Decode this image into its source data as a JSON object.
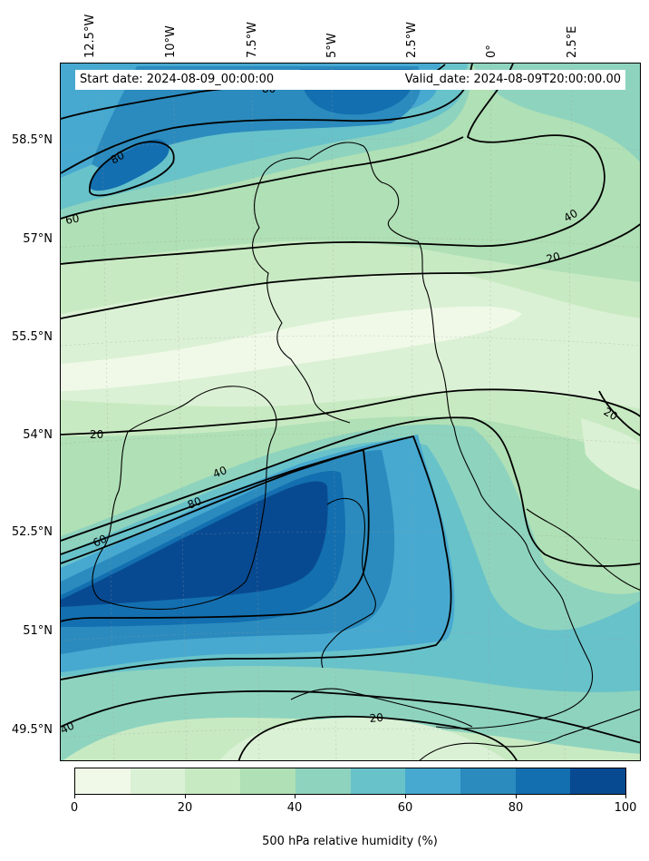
{
  "header": {
    "start_date": "Start date: 2024-08-09_00:00:00",
    "valid_date": "Valid_date: 2024-08-09T20:00:00.00"
  },
  "longitude_labels": [
    "12.5°W",
    "10°W",
    "7.5°W",
    "5°W",
    "2.5°W",
    "0°",
    "2.5°E"
  ],
  "latitude_labels": [
    "58.5°N",
    "57°N",
    "55.5°N",
    "54°N",
    "52.5°N",
    "51°N",
    "49.5°N"
  ],
  "contour_labels": [
    "80",
    "80",
    "60",
    "40",
    "20",
    "20",
    "20",
    "40",
    "80",
    "60",
    "20",
    "40"
  ],
  "colorbar": {
    "title": "500 hPa relative humidity (%)",
    "tick_labels": [
      "0",
      "20",
      "40",
      "60",
      "80",
      "100"
    ],
    "levels": [
      0,
      10,
      20,
      30,
      40,
      50,
      60,
      70,
      80,
      90,
      100
    ],
    "colors": [
      "#f0f9e8",
      "#dbf1d5",
      "#c8eac2",
      "#b0e0b5",
      "#8ed3be",
      "#68c2ca",
      "#47a9d0",
      "#2b8bbe",
      "#136fb0",
      "#084a91"
    ]
  }
}
